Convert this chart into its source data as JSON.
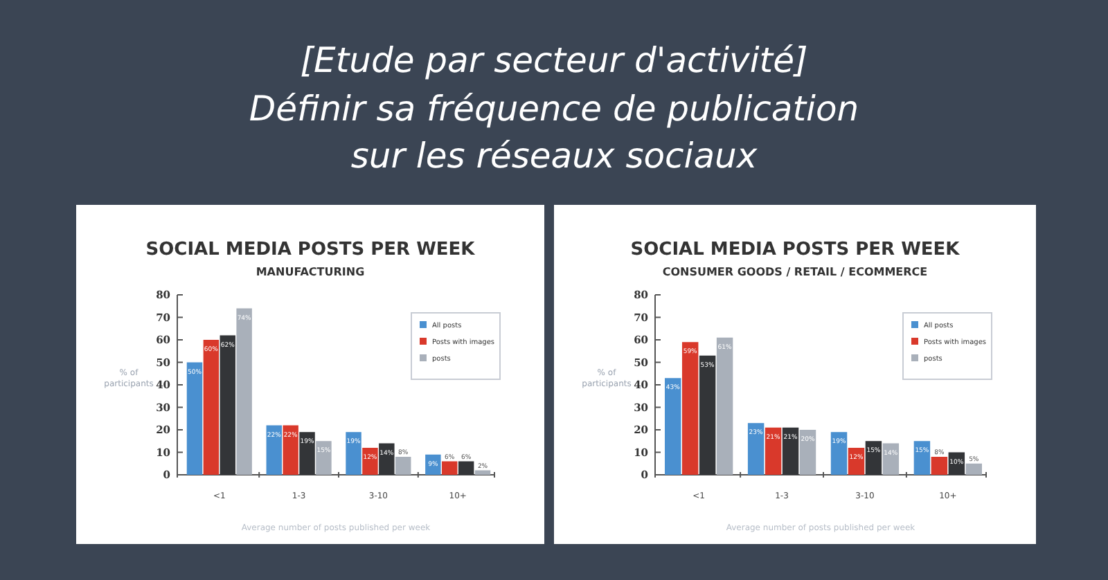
{
  "chart_data": [
    {
      "type": "other",
      "title": "[Etude par secteur d'activité]",
      "subtitle": "Définir sa fréquence de publication sur les réseaux sociaux"
    },
    {
      "type": "bar",
      "title": "SOCIAL MEDIA POSTS PER WEEK",
      "subtitle": "MANUFACTURING",
      "xlabel": "Average number of posts published per week",
      "ylabel": "% of participants",
      "categories": [
        "<1",
        "1-3",
        "3-10",
        "10+"
      ],
      "ylim": [
        0,
        80
      ],
      "yticks": [
        0,
        10,
        20,
        30,
        40,
        50,
        60,
        70,
        80
      ],
      "grid": false,
      "legend": "top right",
      "series": [
        {
          "name": "All posts",
          "color": "#4a90d0",
          "values": [
            50,
            22,
            19,
            9
          ],
          "value_labels": [
            "50%",
            "22%",
            "19%",
            "9%"
          ]
        },
        {
          "name": "Posts with images",
          "color": "#d9392b",
          "values": [
            60,
            22,
            12,
            6
          ],
          "value_labels": [
            "60%",
            "22%",
            "12%",
            "6%"
          ]
        },
        {
          "color": "#333538",
          "values": [
            62,
            19,
            14,
            6
          ],
          "value_labels": [
            "62%",
            "19%",
            "14%",
            "6%"
          ]
        },
        {
          "name": "posts",
          "color": "#a9b0ba",
          "values": [
            74,
            15,
            8,
            2
          ],
          "value_labels": [
            "74%",
            "15%",
            "8%",
            "2%"
          ]
        }
      ]
    },
    {
      "type": "bar",
      "title": "SOCIAL MEDIA POSTS PER WEEK",
      "subtitle": "CONSUMER GOODS / RETAIL / ECOMMERCE",
      "xlabel": "Average number of posts published per week",
      "ylabel": "% of participants",
      "categories": [
        "<1",
        "1-3",
        "3-10",
        "10+"
      ],
      "ylim": [
        0,
        80
      ],
      "yticks": [
        0,
        10,
        20,
        30,
        40,
        50,
        60,
        70,
        80
      ],
      "grid": false,
      "legend": "top right",
      "series": [
        {
          "name": "All posts",
          "color": "#4a90d0",
          "values": [
            43,
            23,
            19,
            15
          ],
          "value_labels": [
            "43%",
            "23%",
            "19%",
            "15%"
          ]
        },
        {
          "name": "Posts with images",
          "color": "#d9392b",
          "values": [
            59,
            21,
            12,
            8
          ],
          "value_labels": [
            "59%",
            "21%",
            "12%",
            "8%"
          ]
        },
        {
          "color": "#333538",
          "values": [
            53,
            21,
            15,
            10
          ],
          "value_labels": [
            "53%",
            "21%",
            "15%",
            "10%"
          ]
        },
        {
          "name": "posts",
          "color": "#a9b0ba",
          "values": [
            61,
            20,
            14,
            5
          ],
          "value_labels": [
            "61%",
            "20%",
            "14%",
            "5%"
          ]
        }
      ]
    }
  ]
}
